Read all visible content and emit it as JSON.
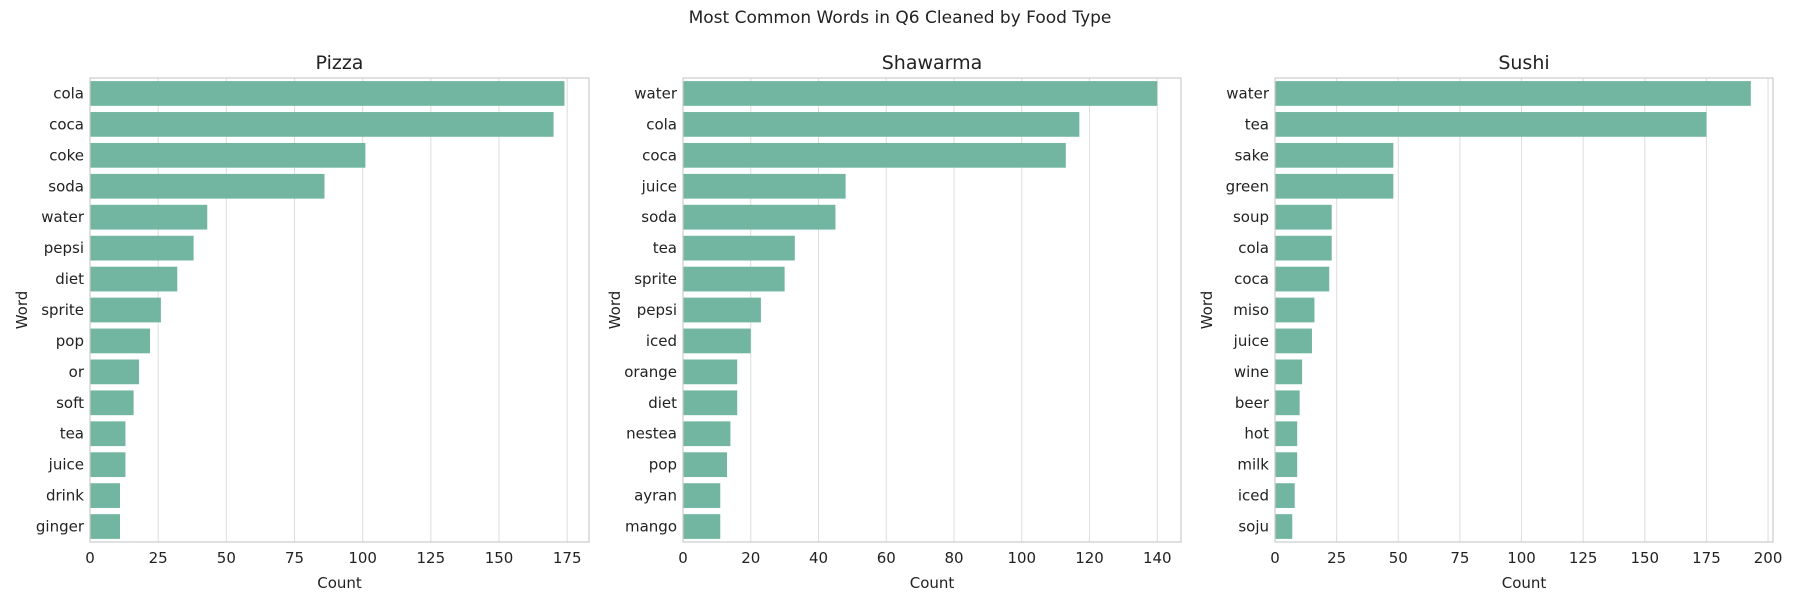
{
  "suptitle": "Most Common Words in Q6 Cleaned by Food Type",
  "colors": {
    "bar": "#72b6a1",
    "grid": "#dddddd",
    "frame": "#cccccc",
    "text": "#222222"
  },
  "chart_data": [
    {
      "type": "bar",
      "orientation": "horizontal",
      "title": "Pizza",
      "xlabel": "Count",
      "ylabel": "Word",
      "xlim": [
        0,
        183
      ],
      "xticks": [
        0,
        25,
        50,
        75,
        100,
        125,
        150,
        175
      ],
      "grid": "vertical",
      "categories": [
        "cola",
        "coca",
        "coke",
        "soda",
        "water",
        "pepsi",
        "diet",
        "sprite",
        "pop",
        "or",
        "soft",
        "tea",
        "juice",
        "drink",
        "ginger"
      ],
      "values": [
        174,
        170,
        101,
        86,
        43,
        38,
        32,
        26,
        22,
        18,
        16,
        13,
        13,
        11,
        11
      ]
    },
    {
      "type": "bar",
      "orientation": "horizontal",
      "title": "Shawarma",
      "xlabel": "Count",
      "ylabel": "Word",
      "xlim": [
        0,
        147
      ],
      "xticks": [
        0,
        20,
        40,
        60,
        80,
        100,
        120,
        140
      ],
      "grid": "vertical",
      "categories": [
        "water",
        "cola",
        "coca",
        "juice",
        "soda",
        "tea",
        "sprite",
        "pepsi",
        "iced",
        "orange",
        "diet",
        "nestea",
        "pop",
        "ayran",
        "mango"
      ],
      "values": [
        140,
        117,
        113,
        48,
        45,
        33,
        30,
        23,
        20,
        16,
        16,
        14,
        13,
        11,
        11
      ]
    },
    {
      "type": "bar",
      "orientation": "horizontal",
      "title": "Sushi",
      "xlabel": "Count",
      "ylabel": "Word",
      "xlim": [
        0,
        202
      ],
      "xticks": [
        0,
        25,
        50,
        75,
        100,
        125,
        150,
        175,
        200
      ],
      "grid": "vertical",
      "categories": [
        "water",
        "tea",
        "sake",
        "green",
        "soup",
        "cola",
        "coca",
        "miso",
        "juice",
        "wine",
        "beer",
        "hot",
        "milk",
        "iced",
        "soju"
      ],
      "values": [
        193,
        175,
        48,
        48,
        23,
        23,
        22,
        16,
        15,
        11,
        10,
        9,
        9,
        8,
        7
      ]
    }
  ]
}
